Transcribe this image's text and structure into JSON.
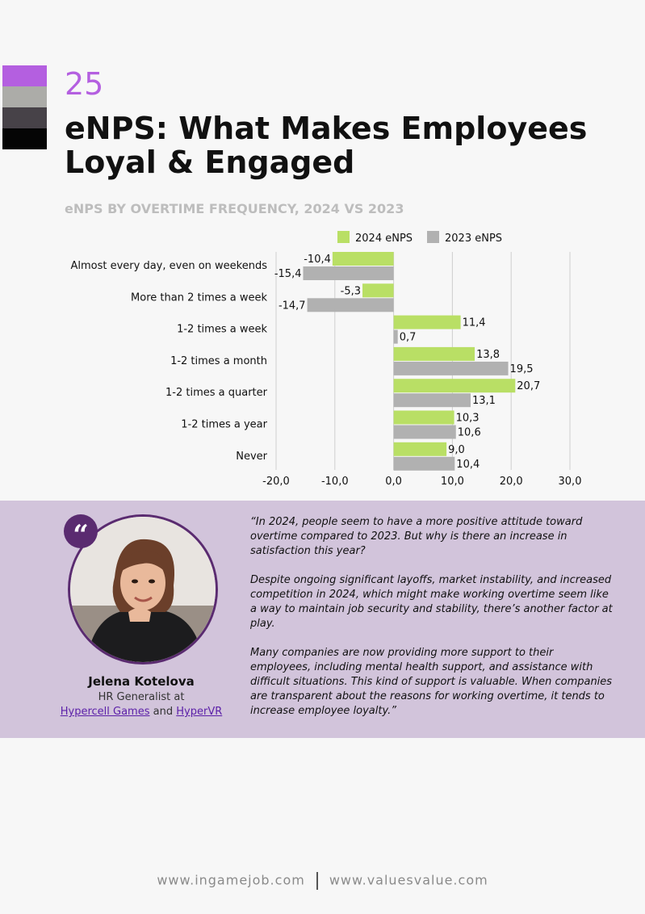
{
  "header": {
    "page_number": "25",
    "title": "eNPS: What Makes Employees Loyal & Engaged",
    "swatch_colors": [
      "#b45fe0",
      "#acaca8",
      "#474248",
      "#050505"
    ]
  },
  "chart_data": {
    "type": "bar",
    "orientation": "horizontal",
    "title": "eNPS BY OVERTIME FREQUENCY, 2024 VS 2023",
    "categories": [
      "Almost every day, even on weekends",
      "More than 2 times a week",
      "1-2 times a week",
      "1-2 times a month",
      "1-2 times a quarter",
      "1-2 times a year",
      "Never"
    ],
    "series": [
      {
        "name": "2024 eNPS",
        "color": "#b9df65",
        "values": [
          -10.4,
          -5.3,
          11.4,
          13.8,
          20.7,
          10.3,
          9.0
        ],
        "labels": [
          "-10,4",
          "-5,3",
          "11,4",
          "13,8",
          "20,7",
          "10,3",
          "9,0"
        ]
      },
      {
        "name": "2023 eNPS",
        "color": "#b1b1b1",
        "values": [
          -15.4,
          -14.7,
          0.7,
          19.5,
          13.1,
          10.6,
          10.4
        ],
        "labels": [
          "-15,4",
          "-14,7",
          "0,7",
          "19,5",
          "13,1",
          "10,6",
          "10,4"
        ]
      }
    ],
    "xlim": [
      -20,
      30
    ],
    "xticks": [
      -20,
      -10,
      0,
      10,
      20,
      30
    ],
    "xtick_labels": [
      "-20,0",
      "-10,0",
      "0,0",
      "10,0",
      "20,0",
      "30,0"
    ],
    "grid": true,
    "legend": "top"
  },
  "quote": {
    "paragraphs": [
      "“In 2024, people seem to have a more positive attitude toward overtime compared to 2023. But why is there an increase in satisfaction this year?",
      "Despite ongoing significant layoffs, market instability, and increased competition in 2024, which might make working overtime seem like a way to maintain job security and stability, there’s another factor at play.",
      "Many companies are now providing more support to their employees, including mental health support, and assistance with difficult situations. This kind of support is valuable. When companies are transparent about the reasons for working overtime, it tends to increase employee loyalty.”"
    ],
    "badge": "“",
    "band_color": "#d2c4db"
  },
  "person": {
    "name": "Jelena Kotelova",
    "role": "HR Generalist at",
    "company_1": "Hypercell Games",
    "conjunction": "and",
    "company_2": "HyperVR"
  },
  "footer": {
    "site_1": "www.ingamejob.com",
    "site_2": "www.valuesvalue.com"
  }
}
